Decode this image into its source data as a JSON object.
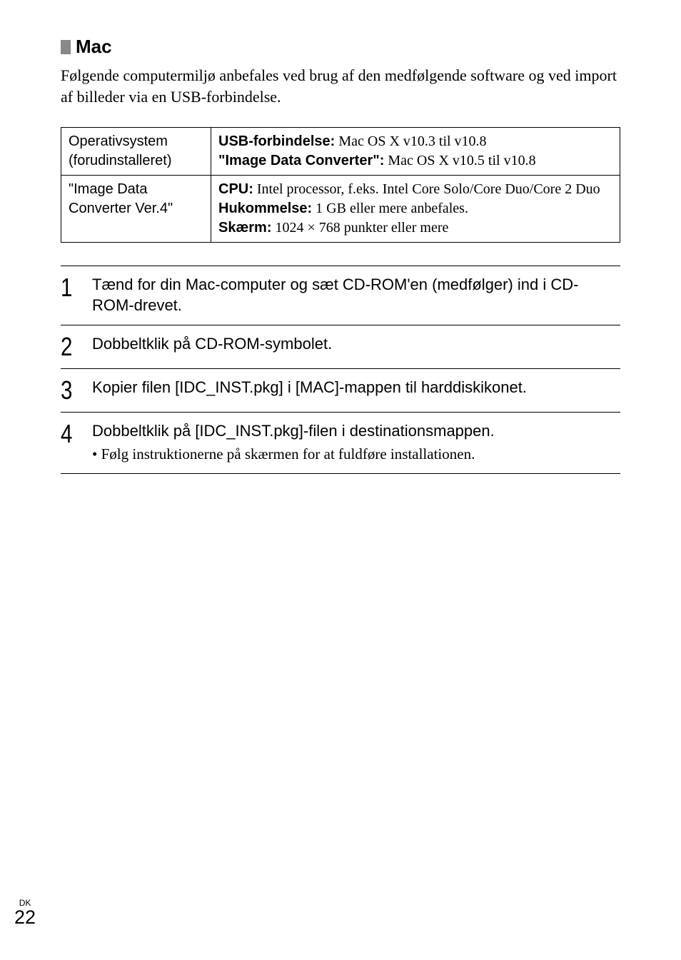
{
  "heading": {
    "title": "Mac"
  },
  "intro": "Følgende computermiljø anbefales ved brug af den medfølgende software og ved import af billeder via en USB-forbindelse.",
  "table": {
    "rows": [
      {
        "left": "Operativsystem (forudinstalleret)",
        "right_parts": [
          {
            "label": "USB-forbindelse:",
            "value": " Mac OS X v10.3 til v10.8"
          },
          {
            "label": "\"Image Data Converter\":",
            "value": " Mac OS X v10.5 til v10.8"
          }
        ]
      },
      {
        "left": "\"Image Data Converter Ver.4\"",
        "right_parts": [
          {
            "label": "CPU:",
            "value": " Intel processor, f.eks. Intel Core Solo/Core Duo/Core 2 Duo"
          },
          {
            "label": "Hukommelse:",
            "value": " 1 GB eller mere anbefales."
          },
          {
            "label": "Skærm:",
            "value": " 1024 × 768 punkter eller mere"
          }
        ]
      }
    ]
  },
  "steps": [
    {
      "num": "1",
      "title": "Tænd for din Mac-computer og sæt CD-ROM'en (medfølger) ind i CD-ROM-drevet.",
      "sub": null
    },
    {
      "num": "2",
      "title": "Dobbeltklik på CD-ROM-symbolet.",
      "sub": null
    },
    {
      "num": "3",
      "title": "Kopier filen [IDC_INST.pkg] i [MAC]-mappen til harddiskikonet.",
      "sub": null
    },
    {
      "num": "4",
      "title": "Dobbeltklik på [IDC_INST.pkg]-filen i destinationsmappen.",
      "sub": "Følg instruktionerne på skærmen for at fuldføre installationen."
    }
  ],
  "footer": {
    "label": "DK",
    "page": "22"
  },
  "colors": {
    "bullet_square": "#888888",
    "text": "#000000",
    "border": "#000000",
    "background": "#ffffff"
  },
  "typography": {
    "heading_fontsize": 26,
    "body_serif_fontsize": 22,
    "table_fontsize": 20,
    "step_number_fontsize": 36,
    "step_title_fontsize": 22,
    "footer_label_fontsize": 12,
    "footer_page_fontsize": 27
  }
}
